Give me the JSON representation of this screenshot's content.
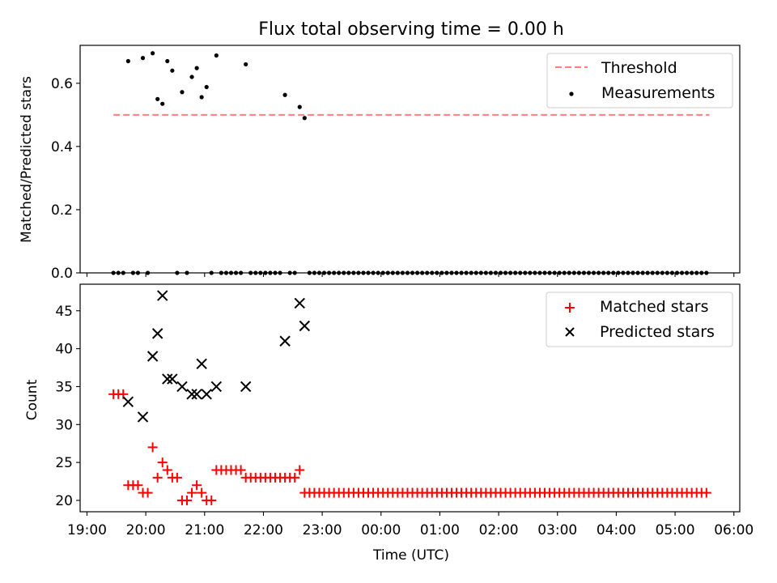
{
  "chart_data": [
    {
      "type": "scatter",
      "title": "Flux total observing time = 0.00 h",
      "xlabel": "",
      "ylabel": "Matched/Predicted stars",
      "xlim": [
        "18:53",
        "06:06"
      ],
      "ylim": [
        0,
        0.72
      ],
      "yticks": [
        "0.0",
        "0.2",
        "0.4",
        "0.6"
      ],
      "grid": false,
      "legend": {
        "placement": "top-right",
        "entries": [
          "Threshold",
          "Measurements"
        ]
      },
      "series": [
        {
          "name": "Threshold",
          "style": "dashed-line",
          "color": "#ff7f7f",
          "x": [
            "19:27",
            "05:35"
          ],
          "y": [
            0.5,
            0.5
          ]
        },
        {
          "name": "Measurements",
          "style": "dot",
          "color": "#000000",
          "x_high": [
            "19:42",
            "19:57",
            "20:07",
            "20:12",
            "20:17",
            "20:22",
            "20:27",
            "20:37",
            "20:47",
            "20:52",
            "20:57",
            "21:02",
            "21:12",
            "21:42",
            "22:22",
            "22:37",
            "22:42"
          ],
          "y_high": [
            0.67,
            0.68,
            0.695,
            0.55,
            0.535,
            0.67,
            0.64,
            0.572,
            0.62,
            0.648,
            0.556,
            0.588,
            0.688,
            0.66,
            0.563,
            0.525,
            0.49
          ],
          "zeros_from": "19:27",
          "zeros_to": "05:35",
          "zeros_step_minutes": 5
        }
      ]
    },
    {
      "type": "scatter",
      "title": "",
      "xlabel": "Time (UTC)",
      "ylabel": "Count",
      "xlim": [
        "18:53",
        "06:06"
      ],
      "ylim": [
        18.5,
        48.5
      ],
      "yticks": [
        "20",
        "25",
        "30",
        "35",
        "40",
        "45"
      ],
      "xticks": [
        "19:00",
        "20:00",
        "21:00",
        "22:00",
        "23:00",
        "00:00",
        "01:00",
        "02:00",
        "03:00",
        "04:00",
        "05:00",
        "06:00"
      ],
      "grid": false,
      "legend": {
        "placement": "top-right",
        "entries": [
          "Matched stars",
          "Predicted stars"
        ]
      },
      "series": [
        {
          "name": "Matched stars",
          "marker": "plus",
          "color": "#ff0000",
          "early": [
            [
              "19:27",
              34
            ],
            [
              "19:32",
              34
            ],
            [
              "19:37",
              34
            ],
            [
              "19:42",
              22
            ],
            [
              "19:47",
              22
            ],
            [
              "19:52",
              22
            ],
            [
              "19:57",
              21
            ],
            [
              "20:02",
              21
            ],
            [
              "20:07",
              27
            ],
            [
              "20:12",
              23
            ],
            [
              "20:17",
              25
            ],
            [
              "20:22",
              24
            ],
            [
              "20:27",
              23
            ],
            [
              "20:32",
              23
            ],
            [
              "20:37",
              20
            ],
            [
              "20:42",
              20
            ],
            [
              "20:47",
              21
            ],
            [
              "20:52",
              22
            ],
            [
              "20:57",
              21
            ],
            [
              "21:02",
              20
            ],
            [
              "21:07",
              20
            ],
            [
              "21:12",
              24
            ],
            [
              "21:17",
              24
            ],
            [
              "21:22",
              24
            ],
            [
              "21:27",
              24
            ],
            [
              "21:32",
              24
            ],
            [
              "21:37",
              24
            ],
            [
              "21:42",
              23
            ],
            [
              "21:47",
              23
            ],
            [
              "21:52",
              23
            ],
            [
              "21:57",
              23
            ],
            [
              "22:02",
              23
            ],
            [
              "22:07",
              23
            ],
            [
              "22:12",
              23
            ],
            [
              "22:17",
              23
            ],
            [
              "22:22",
              23
            ],
            [
              "22:27",
              23
            ],
            [
              "22:32",
              23
            ],
            [
              "22:37",
              24
            ]
          ],
          "constant_from": "22:42",
          "constant_to": "05:35",
          "constant_step_minutes": 5,
          "constant_value": 21
        },
        {
          "name": "Predicted stars",
          "marker": "x",
          "color": "#000000",
          "x": [
            "19:42",
            "19:57",
            "20:07",
            "20:12",
            "20:17",
            "20:22",
            "20:27",
            "20:37",
            "20:47",
            "20:52",
            "20:57",
            "21:02",
            "21:12",
            "21:42",
            "22:22",
            "22:37",
            "22:42"
          ],
          "y": [
            33,
            31,
            39,
            42,
            47,
            36,
            36,
            35,
            34,
            34,
            38,
            34,
            35,
            35,
            41,
            46,
            43
          ]
        }
      ]
    }
  ]
}
